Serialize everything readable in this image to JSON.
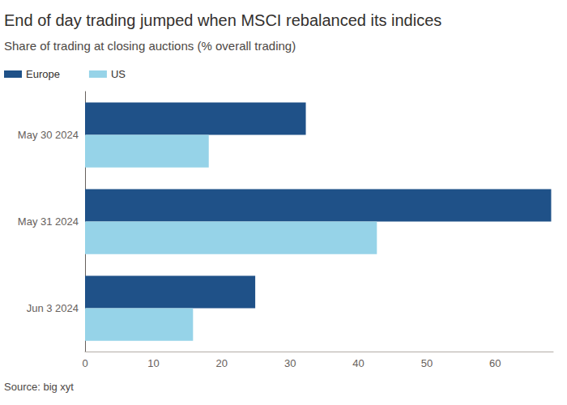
{
  "chart_data": {
    "type": "bar",
    "orientation": "horizontal",
    "title": "End of day trading jumped when MSCI rebalanced its indices",
    "subtitle": "Share of trading at closing auctions (% overall trading)",
    "source": "Source: big xyt",
    "categories": [
      "May 30 2024",
      "May 31 2024",
      "Jun 3 2024"
    ],
    "series": [
      {
        "name": "Europe",
        "color": "#1f5188",
        "values": [
          32.3,
          68.2,
          24.9
        ]
      },
      {
        "name": "US",
        "color": "#96d3e8",
        "values": [
          18.1,
          42.7,
          15.8
        ]
      }
    ],
    "xlim": [
      0,
      68.5
    ],
    "xticks": [
      0,
      10,
      20,
      30,
      40,
      50,
      60
    ],
    "grid": false,
    "legend": "top-left",
    "data_labels": false
  }
}
